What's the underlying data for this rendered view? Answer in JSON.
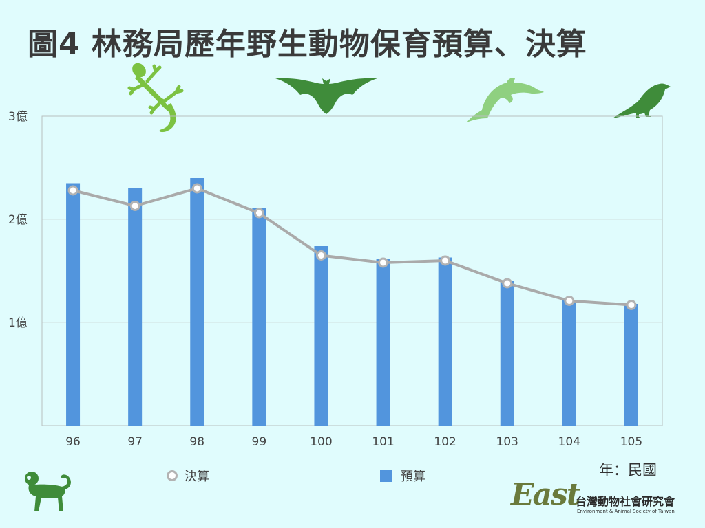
{
  "title": "圖4 林務局歷年野生動物保育預算、決算",
  "unit_label": "年：民國",
  "legend": {
    "line_label": "決算",
    "bar_label": "預算"
  },
  "logo": {
    "script": "East",
    "name": "台灣動物社會研究會",
    "english": "Environment & Animal Society of Taiwan"
  },
  "colors": {
    "bar": "#5295dd",
    "line": "#aaaaaa",
    "background": "#e0fcfd",
    "animals": [
      "#7cc242",
      "#3f8c3a",
      "#8fd080",
      "#3f8c3a",
      "#3f8c3a"
    ]
  },
  "icons": [
    "lizard-icon",
    "bat-icon",
    "dolphin-icon",
    "bird-icon",
    "monkey-icon"
  ],
  "chart_data": {
    "type": "bar",
    "categories": [
      "96",
      "97",
      "98",
      "99",
      "100",
      "101",
      "102",
      "103",
      "104",
      "105"
    ],
    "series": [
      {
        "name": "預算",
        "type": "bar",
        "values": [
          2.35,
          2.3,
          2.4,
          2.11,
          1.74,
          1.62,
          1.63,
          1.4,
          1.22,
          1.18
        ]
      },
      {
        "name": "決算",
        "type": "line",
        "values": [
          2.28,
          2.13,
          2.3,
          2.06,
          1.65,
          1.58,
          1.6,
          1.38,
          1.21,
          1.17
        ]
      }
    ],
    "yticks": [
      {
        "value": 1,
        "label": "1億"
      },
      {
        "value": 2,
        "label": "2億"
      },
      {
        "value": 3,
        "label": "3億"
      }
    ],
    "ylim": [
      0,
      3
    ],
    "xlabel": "年：民國",
    "grid": true,
    "legend_position": "bottom"
  }
}
